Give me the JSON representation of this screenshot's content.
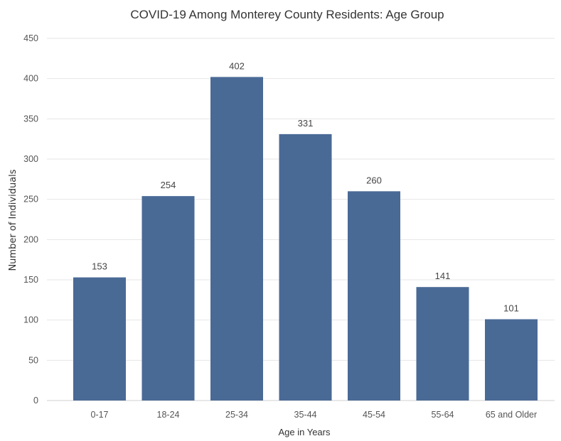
{
  "chart_data": {
    "type": "bar",
    "title": "COVID-19 Among Monterey County Residents: Age Group",
    "xlabel": "Age in Years",
    "ylabel": "Number of Individuals",
    "categories": [
      "0-17",
      "18-24",
      "25-34",
      "35-44",
      "45-54",
      "55-64",
      "65 and Older"
    ],
    "values": [
      153,
      254,
      402,
      331,
      260,
      141,
      101
    ],
    "ylim": [
      0,
      450
    ],
    "yticks": [
      0,
      50,
      100,
      150,
      200,
      250,
      300,
      350,
      400,
      450
    ],
    "grid": true,
    "legend": "none",
    "bar_color": "#4a6a96"
  }
}
